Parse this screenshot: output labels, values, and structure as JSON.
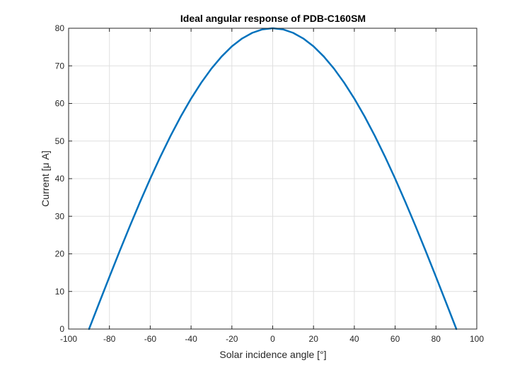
{
  "chart_data": {
    "type": "line",
    "title": "Ideal angular response of PDB-C160SM",
    "xlabel": "Solar incidence angle [°]",
    "ylabel": "Current [μ A]",
    "xlim": [
      -100,
      100
    ],
    "ylim": [
      0,
      80
    ],
    "xticks": [
      -100,
      -80,
      -60,
      -40,
      -20,
      0,
      20,
      40,
      60,
      80,
      100
    ],
    "yticks": [
      0,
      10,
      20,
      30,
      40,
      50,
      60,
      70,
      80
    ],
    "grid": true,
    "legend": "none",
    "series": [
      {
        "color": "#0072BD",
        "x": [
          -90,
          -85,
          -80,
          -75,
          -70,
          -65,
          -60,
          -55,
          -50,
          -45,
          -40,
          -35,
          -30,
          -25,
          -20,
          -15,
          -10,
          -5,
          0,
          5,
          10,
          15,
          20,
          25,
          30,
          35,
          40,
          45,
          50,
          55,
          60,
          65,
          70,
          75,
          80,
          85,
          90
        ],
        "y": [
          0,
          6.97,
          13.89,
          20.71,
          27.36,
          33.81,
          40.0,
          45.89,
          51.42,
          56.57,
          61.28,
          65.53,
          69.28,
          72.5,
          75.18,
          77.27,
          78.78,
          79.7,
          80.0,
          79.7,
          78.78,
          77.27,
          75.18,
          72.5,
          69.28,
          65.53,
          61.28,
          56.57,
          51.42,
          45.89,
          40.0,
          33.81,
          27.36,
          20.71,
          13.89,
          6.97,
          0
        ]
      }
    ]
  }
}
